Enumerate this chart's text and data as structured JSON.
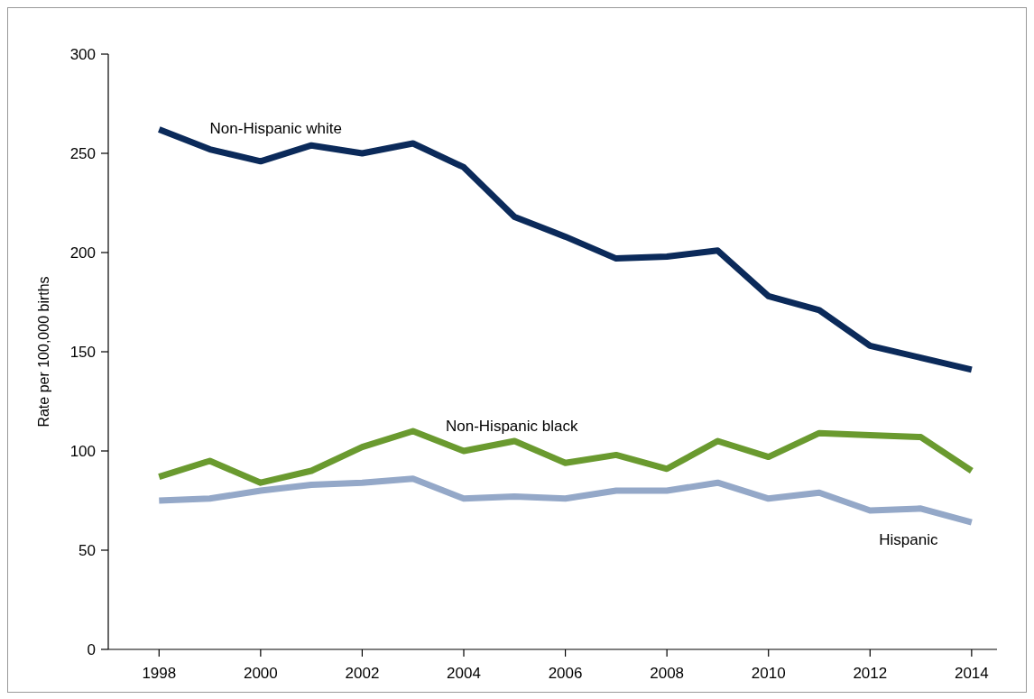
{
  "chart_data": {
    "type": "line",
    "ylabel": "Rate per 100,000 births",
    "x": [
      1998,
      1999,
      2000,
      2001,
      2002,
      2003,
      2004,
      2005,
      2006,
      2007,
      2008,
      2009,
      2010,
      2011,
      2012,
      2013,
      2014
    ],
    "xlim": [
      1997,
      2014.5
    ],
    "xticks": [
      1998,
      2000,
      2002,
      2004,
      2006,
      2008,
      2010,
      2012,
      2014
    ],
    "ylim": [
      0,
      300
    ],
    "yticks": [
      0,
      50,
      100,
      150,
      200,
      250,
      300
    ],
    "grid": false,
    "marker": "none",
    "line_style": "solid",
    "series": [
      {
        "name": "Non-Hispanic white",
        "color": "#0b2a5a",
        "values": [
          262,
          252,
          246,
          254,
          250,
          255,
          243,
          218,
          208,
          197,
          198,
          201,
          178,
          171,
          153,
          147,
          141
        ]
      },
      {
        "name": "Non-Hispanic black",
        "color": "#6a9a2f",
        "values": [
          87,
          95,
          84,
          90,
          102,
          110,
          100,
          105,
          94,
          98,
          91,
          105,
          97,
          109,
          108,
          107,
          90
        ]
      },
      {
        "name": "Hispanic",
        "color": "#94a8c8",
        "values": [
          75,
          76,
          80,
          83,
          84,
          86,
          76,
          77,
          76,
          80,
          80,
          84,
          76,
          79,
          70,
          71,
          64
        ]
      }
    ]
  }
}
